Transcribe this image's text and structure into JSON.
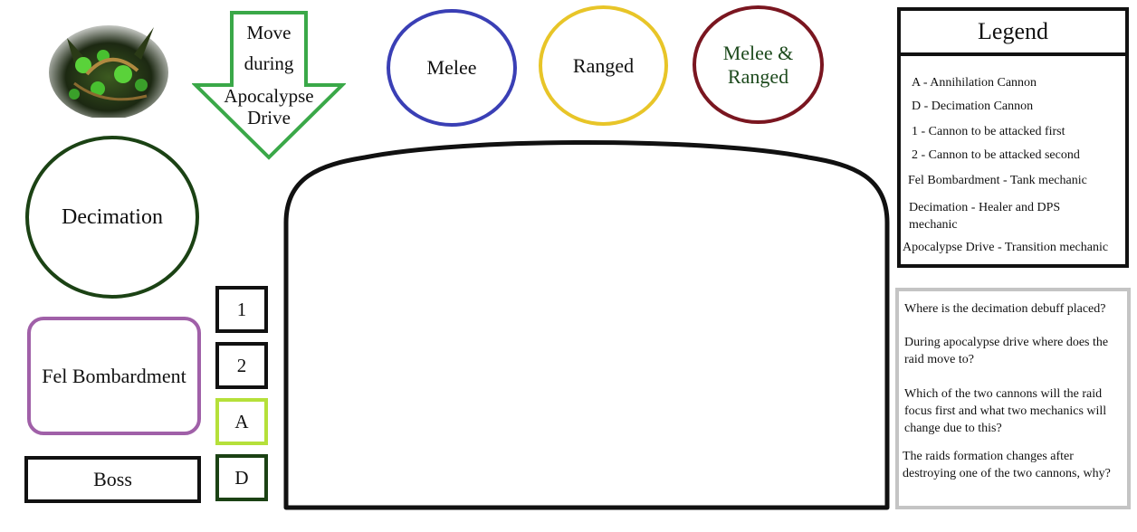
{
  "colors": {
    "melee": "#3a3fb5",
    "ranged": "#e8c528",
    "melee_ranged": "#7a1620",
    "decimation": "#1b4214",
    "fel_bombardment": "#a060a8",
    "arrow": "#3aa848",
    "cannon_a": "#b5e03a",
    "cannon_d": "#1b4214"
  },
  "portrait": {
    "icon": "boss-portrait-icon"
  },
  "arrow": {
    "lines": [
      "Move",
      "during",
      "Apocalypse",
      "Drive"
    ]
  },
  "roles": {
    "melee": "Melee",
    "ranged": "Ranged",
    "melee_ranged_line1": "Melee &",
    "melee_ranged_line2": "Ranged"
  },
  "mechanics": {
    "decimation": "Decimation",
    "fel_bombardment": "Fel Bombardment",
    "boss": "Boss"
  },
  "markers": {
    "first": "1",
    "second": "2",
    "annihilation": "A",
    "decimation": "D"
  },
  "legend": {
    "title": "Legend",
    "items": [
      "A - Annihilation  Cannon",
      "D - Decimation Cannon",
      "1 - Cannon to be attacked first",
      "2 - Cannon to be attacked second",
      "Fel Bombardment - Tank mechanic",
      "Decimation - Healer and DPS mechanic",
      "Apocalypse Drive - Transition mechanic"
    ]
  },
  "questions": [
    "Where is the decimation debuff placed?",
    "During apocalypse drive where does the raid move to?",
    "Which of the two cannons will the raid focus first and what two mechanics will change due to this?",
    "The raids formation changes after destroying one of the two cannons, why?"
  ]
}
